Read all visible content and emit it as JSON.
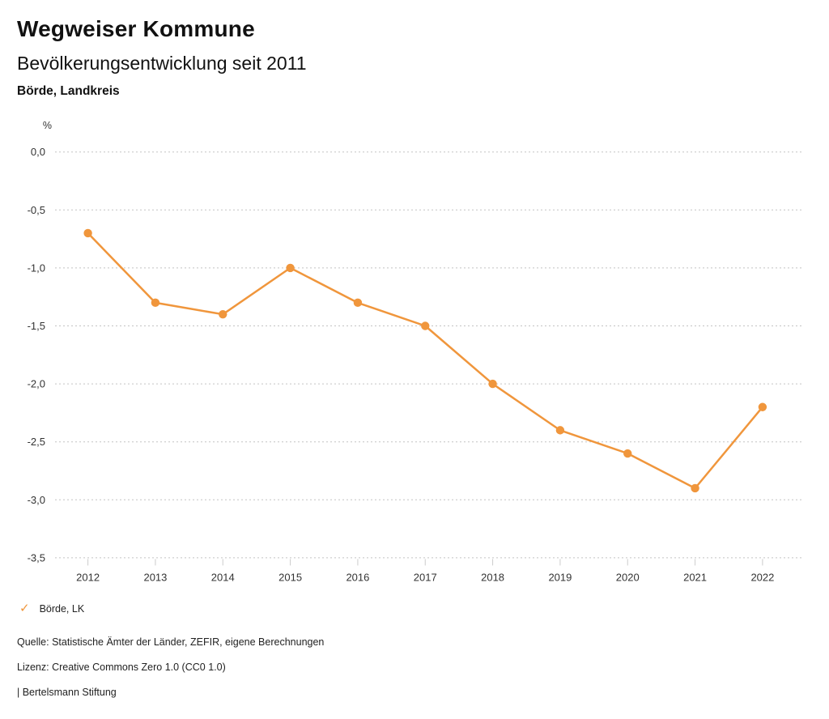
{
  "header": {
    "title": "Wegweiser Kommune",
    "subtitle": "Bevölkerungsentwicklung seit 2011",
    "region": "Börde, Landkreis"
  },
  "legend": {
    "check_icon": "✓",
    "label": "Börde, LK"
  },
  "footer": {
    "source": "Quelle: Statistische Ämter der Länder, ZEFIR, eigene Berechnungen",
    "license": "Lizenz: Creative Commons Zero 1.0 (CC0 1.0)",
    "branding": "| Bertelsmann Stiftung"
  },
  "colors": {
    "line": "#F0963C",
    "marker": "#F0963C",
    "legend_check": "#F0963C",
    "grid": "#C3C3C3",
    "axis_tick": "#CCCCCC",
    "axis_text": "#333333"
  },
  "chart_data": {
    "type": "line",
    "title": "Bevölkerungsentwicklung seit 2011",
    "unit_label": "%",
    "x": [
      2012,
      2013,
      2014,
      2015,
      2016,
      2017,
      2018,
      2019,
      2020,
      2021,
      2022
    ],
    "series": [
      {
        "name": "Börde, LK",
        "values": [
          -0.7,
          -1.3,
          -1.4,
          -1.0,
          -1.3,
          -1.5,
          -2.0,
          -2.4,
          -2.6,
          -2.9,
          -2.2
        ]
      }
    ],
    "ylim": [
      -3.5,
      0.0
    ],
    "ytick_values": [
      0.0,
      -0.5,
      -1.0,
      -1.5,
      -2.0,
      -2.5,
      -3.0,
      -3.5
    ],
    "ytick_labels": [
      "0,0",
      "-0,5",
      "-1,0",
      "-1,5",
      "-2,0",
      "-2,5",
      "-3,0",
      "-3,5"
    ],
    "grid": "horizontal-dotted",
    "legend_position": "bottom-left"
  }
}
